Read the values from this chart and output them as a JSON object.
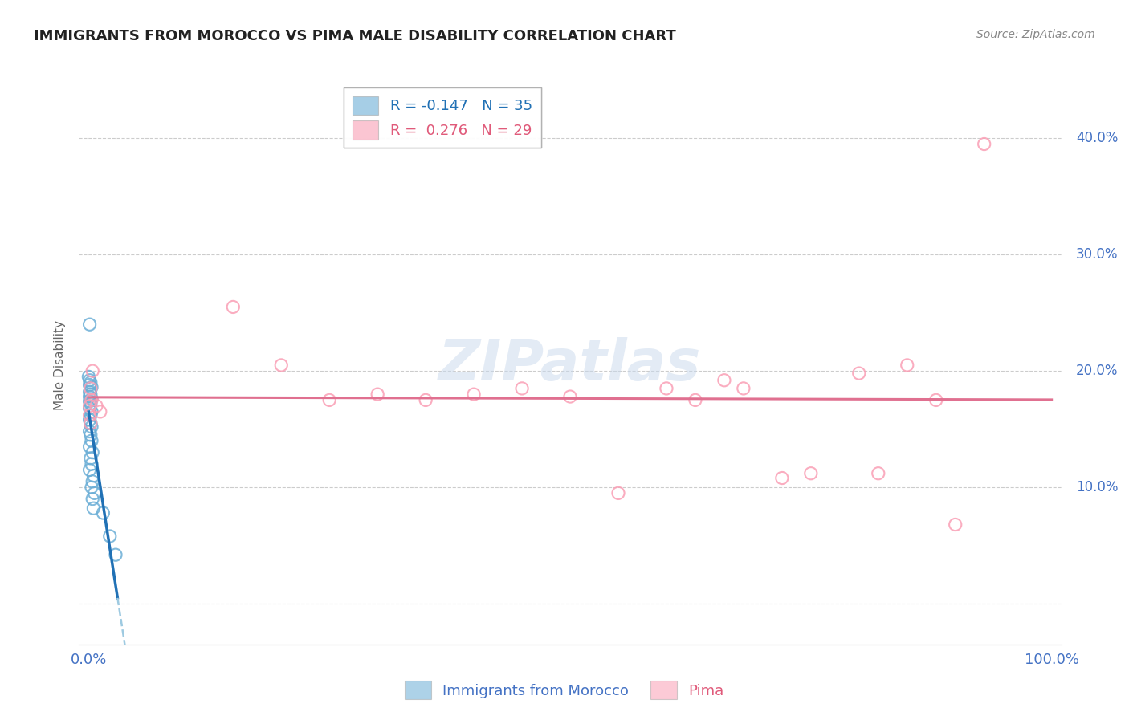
{
  "title": "IMMIGRANTS FROM MOROCCO VS PIMA MALE DISABILITY CORRELATION CHART",
  "source": "Source: ZipAtlas.com",
  "legend_label_blue": "Immigrants from Morocco",
  "legend_label_pink": "Pima",
  "ylabel": "Male Disability",
  "xlim": [
    -0.01,
    1.01
  ],
  "ylim": [
    -0.035,
    0.445
  ],
  "ytick_vals": [
    0.0,
    0.1,
    0.2,
    0.3,
    0.4
  ],
  "ytick_labels_right": [
    "",
    "10.0%",
    "20.0%",
    "30.0%",
    "40.0%"
  ],
  "xtick_vals": [
    0.0,
    1.0
  ],
  "xtick_labels": [
    "0.0%",
    "100.0%"
  ],
  "legend_r_blue": "-0.147",
  "legend_n_blue": "35",
  "legend_r_pink": "0.276",
  "legend_n_pink": "29",
  "blue_color": "#6baed6",
  "blue_line_color": "#2171b5",
  "blue_dash_color": "#9ecae1",
  "pink_color": "#fa9fb5",
  "pink_line_color": "#e07090",
  "blue_scatter": [
    [
      0.001,
      0.24
    ],
    [
      0.0,
      0.195
    ],
    [
      0.001,
      0.192
    ],
    [
      0.002,
      0.19
    ],
    [
      0.001,
      0.188
    ],
    [
      0.003,
      0.186
    ],
    [
      0.001,
      0.182
    ],
    [
      0.002,
      0.18
    ],
    [
      0.001,
      0.178
    ],
    [
      0.003,
      0.176
    ],
    [
      0.001,
      0.174
    ],
    [
      0.002,
      0.172
    ],
    [
      0.001,
      0.168
    ],
    [
      0.003,
      0.165
    ],
    [
      0.002,
      0.162
    ],
    [
      0.001,
      0.158
    ],
    [
      0.002,
      0.155
    ],
    [
      0.003,
      0.152
    ],
    [
      0.001,
      0.148
    ],
    [
      0.002,
      0.145
    ],
    [
      0.003,
      0.14
    ],
    [
      0.001,
      0.135
    ],
    [
      0.004,
      0.13
    ],
    [
      0.002,
      0.125
    ],
    [
      0.003,
      0.12
    ],
    [
      0.001,
      0.115
    ],
    [
      0.005,
      0.11
    ],
    [
      0.004,
      0.105
    ],
    [
      0.003,
      0.1
    ],
    [
      0.006,
      0.095
    ],
    [
      0.004,
      0.09
    ],
    [
      0.005,
      0.082
    ],
    [
      0.015,
      0.078
    ],
    [
      0.022,
      0.058
    ],
    [
      0.028,
      0.042
    ]
  ],
  "pink_scatter": [
    [
      0.001,
      0.17
    ],
    [
      0.001,
      0.162
    ],
    [
      0.002,
      0.155
    ],
    [
      0.003,
      0.175
    ],
    [
      0.002,
      0.185
    ],
    [
      0.004,
      0.2
    ],
    [
      0.008,
      0.17
    ],
    [
      0.012,
      0.165
    ],
    [
      0.15,
      0.255
    ],
    [
      0.2,
      0.205
    ],
    [
      0.25,
      0.175
    ],
    [
      0.3,
      0.18
    ],
    [
      0.35,
      0.175
    ],
    [
      0.4,
      0.18
    ],
    [
      0.45,
      0.185
    ],
    [
      0.5,
      0.178
    ],
    [
      0.55,
      0.095
    ],
    [
      0.6,
      0.185
    ],
    [
      0.63,
      0.175
    ],
    [
      0.66,
      0.192
    ],
    [
      0.68,
      0.185
    ],
    [
      0.72,
      0.108
    ],
    [
      0.75,
      0.112
    ],
    [
      0.8,
      0.198
    ],
    [
      0.82,
      0.112
    ],
    [
      0.85,
      0.205
    ],
    [
      0.88,
      0.175
    ],
    [
      0.9,
      0.068
    ],
    [
      0.93,
      0.395
    ]
  ],
  "watermark": "ZIPatlas",
  "background_color": "#ffffff",
  "grid_color": "#cccccc"
}
